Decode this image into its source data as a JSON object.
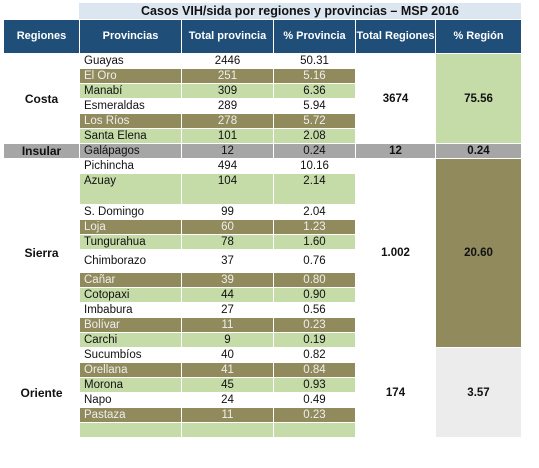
{
  "title": "Casos VIH/sida por regiones y provincias – MSP 2016",
  "headers": {
    "regiones": "Regiones",
    "provincias": "Provincias",
    "total_provincia": "Total provincia",
    "pct_provincia": "% Provincia",
    "total_regiones": "Total Regiones",
    "pct_region": "% Región"
  },
  "regions": [
    {
      "name": "Costa",
      "total": "3674",
      "pct": "75.56",
      "rows": [
        {
          "prov": "Guayas",
          "total": "2446",
          "pct": "50.31"
        },
        {
          "prov": "El Oro",
          "total": "251",
          "pct": "5.16"
        },
        {
          "prov": "Manabí",
          "total": "309",
          "pct": "6.36"
        },
        {
          "prov": "Esmeraldas",
          "total": "289",
          "pct": "5.94"
        },
        {
          "prov": "Los Ríos",
          "total": "278",
          "pct": "5.72"
        },
        {
          "prov": "Santa Elena",
          "total": "101",
          "pct": "2.08"
        }
      ]
    },
    {
      "name": "Insular",
      "total": "12",
      "pct": "0.24",
      "rows": [
        {
          "prov": "Galápagos",
          "total": "12",
          "pct": "0.24"
        }
      ]
    },
    {
      "name": "Sierra",
      "total": "1.002",
      "pct": "20.60",
      "rows": [
        {
          "prov": "Pichincha",
          "total": "494",
          "pct": "10.16"
        },
        {
          "prov": "Azuay",
          "total": "104",
          "pct": "2.14"
        },
        {
          "prov": "S. Domingo",
          "total": "99",
          "pct": "2.04"
        },
        {
          "prov": "Loja",
          "total": "60",
          "pct": "1.23"
        },
        {
          "prov": "Tungurahua",
          "total": "78",
          "pct": "1.60"
        },
        {
          "prov": "Chimborazo",
          "total": "37",
          "pct": "0.76"
        },
        {
          "prov": "Cañar",
          "total": "39",
          "pct": "0.80"
        },
        {
          "prov": "Cotopaxi",
          "total": "44",
          "pct": "0.90"
        },
        {
          "prov": "Imbabura",
          "total": "27",
          "pct": "0.56"
        },
        {
          "prov": "Bolívar",
          "total": "11",
          "pct": "0.23"
        },
        {
          "prov": "Carchi",
          "total": "9",
          "pct": "0.19"
        }
      ]
    },
    {
      "name": "Oriente",
      "total": "174",
      "pct": "3.57",
      "rows": [
        {
          "prov": "Sucumbíos",
          "total": "40",
          "pct": "0.82"
        },
        {
          "prov": "Orellana",
          "total": "41",
          "pct": "0.84"
        },
        {
          "prov": "Morona",
          "total": "45",
          "pct": "0.93"
        },
        {
          "prov": "Napo",
          "total": "24",
          "pct": "0.49"
        },
        {
          "prov": "Pastaza",
          "total": "11",
          "pct": "0.23"
        }
      ]
    }
  ],
  "colors": {
    "header_bg": "#1f4e79",
    "title_bg": "#dce6f1",
    "light_green": "#c5dca8",
    "olive": "#908a5c",
    "insular_grey": "#a6a6a6"
  }
}
